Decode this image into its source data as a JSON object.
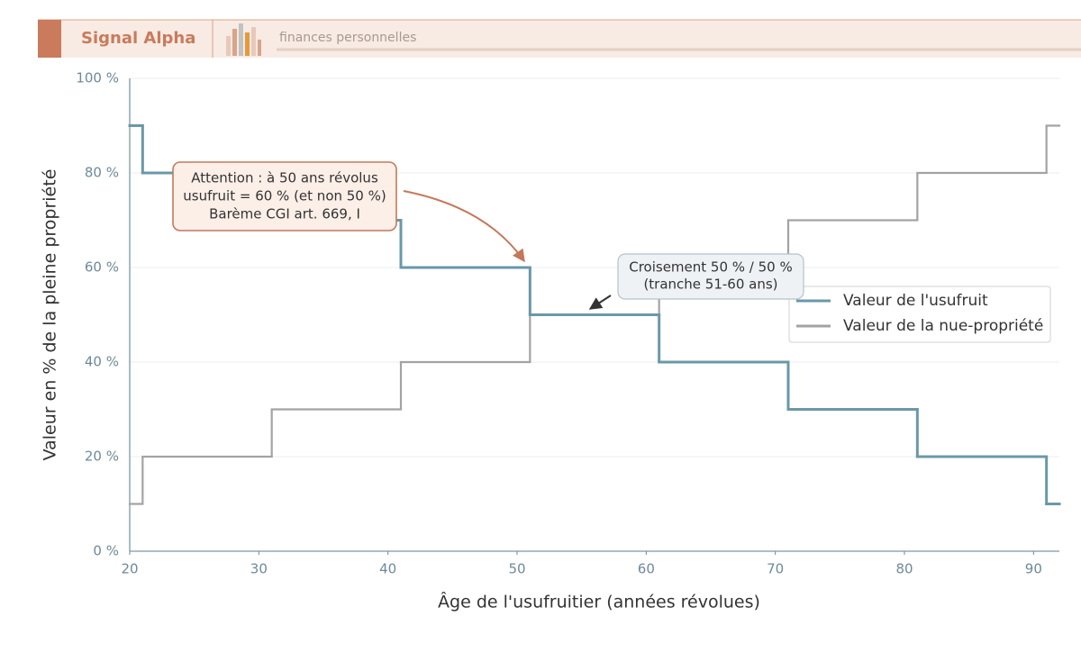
{
  "header": {
    "brand": "Signal Alpha",
    "tagline": "finances personnelles"
  },
  "chart_data": {
    "type": "step",
    "x_label": "Âge de l'usufruitier (années révolues)",
    "y_label": "Valeur en % de la pleine propriété",
    "x": [
      20,
      21,
      31,
      41,
      51,
      61,
      71,
      81,
      91
    ],
    "series": [
      {
        "name": "Valeur de l'usufruit",
        "color": "#6a98a8",
        "values": [
          90,
          80,
          70,
          60,
          50,
          40,
          30,
          20,
          10
        ]
      },
      {
        "name": "Valeur de la nue-propriété",
        "color": "#a3a3a3",
        "values": [
          10,
          20,
          30,
          40,
          50,
          60,
          70,
          80,
          90
        ]
      }
    ],
    "xlim": [
      20,
      92
    ],
    "ylim": [
      0,
      100
    ],
    "xticks": [
      20,
      30,
      40,
      50,
      60,
      70,
      80,
      90
    ],
    "yticks": [
      {
        "value": 0,
        "label": "0 %"
      },
      {
        "value": 20,
        "label": "20 %"
      },
      {
        "value": 40,
        "label": "40 %"
      },
      {
        "value": 60,
        "label": "60 %"
      },
      {
        "value": 80,
        "label": "80 %"
      },
      {
        "value": 100,
        "label": "100 %"
      }
    ],
    "grid": true,
    "legend": "right",
    "annotations": [
      {
        "lines": [
          "Attention : à 50 ans révolus",
          "usufruit = 60 % (et non 50 %)",
          "Barème CGI art. 669, I"
        ]
      },
      {
        "lines": [
          "Croisement 50 % / 50 %",
          "(tranche 51-60 ans)"
        ]
      }
    ]
  }
}
